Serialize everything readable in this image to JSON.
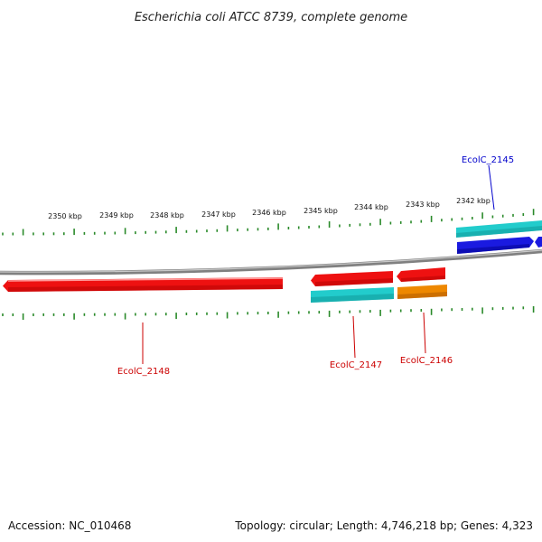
{
  "title": "Escherichia coli ATCC 8739, complete genome",
  "scale_ticks": [
    {
      "label": "2350 kbp"
    },
    {
      "label": "2349 kbp"
    },
    {
      "label": "2348 kbp"
    },
    {
      "label": "2347 kbp"
    },
    {
      "label": "2346 kbp"
    },
    {
      "label": "2345 kbp"
    },
    {
      "label": "2344 kbp"
    },
    {
      "label": "2343 kbp"
    },
    {
      "label": "2342 kbp"
    }
  ],
  "genes": [
    {
      "label": "EcolC_2145",
      "label_color": "#0000cc"
    },
    {
      "label": "EcolC_2148",
      "label_color": "#cc0000"
    },
    {
      "label": "EcolC_2147",
      "label_color": "#cc0000"
    },
    {
      "label": "EcolC_2146",
      "label_color": "#cc0000"
    }
  ],
  "colors": {
    "backbone": "#808080",
    "cds": "#ee1111",
    "rna": "#22cccc",
    "other": "#ee8800",
    "feature": "#1a1ae0",
    "ticks": "#2a8a2a"
  },
  "footer": {
    "accession": "Accession: NC_010468",
    "summary": "Topology: circular; Length: 4,746,218 bp; Genes: 4,323"
  }
}
